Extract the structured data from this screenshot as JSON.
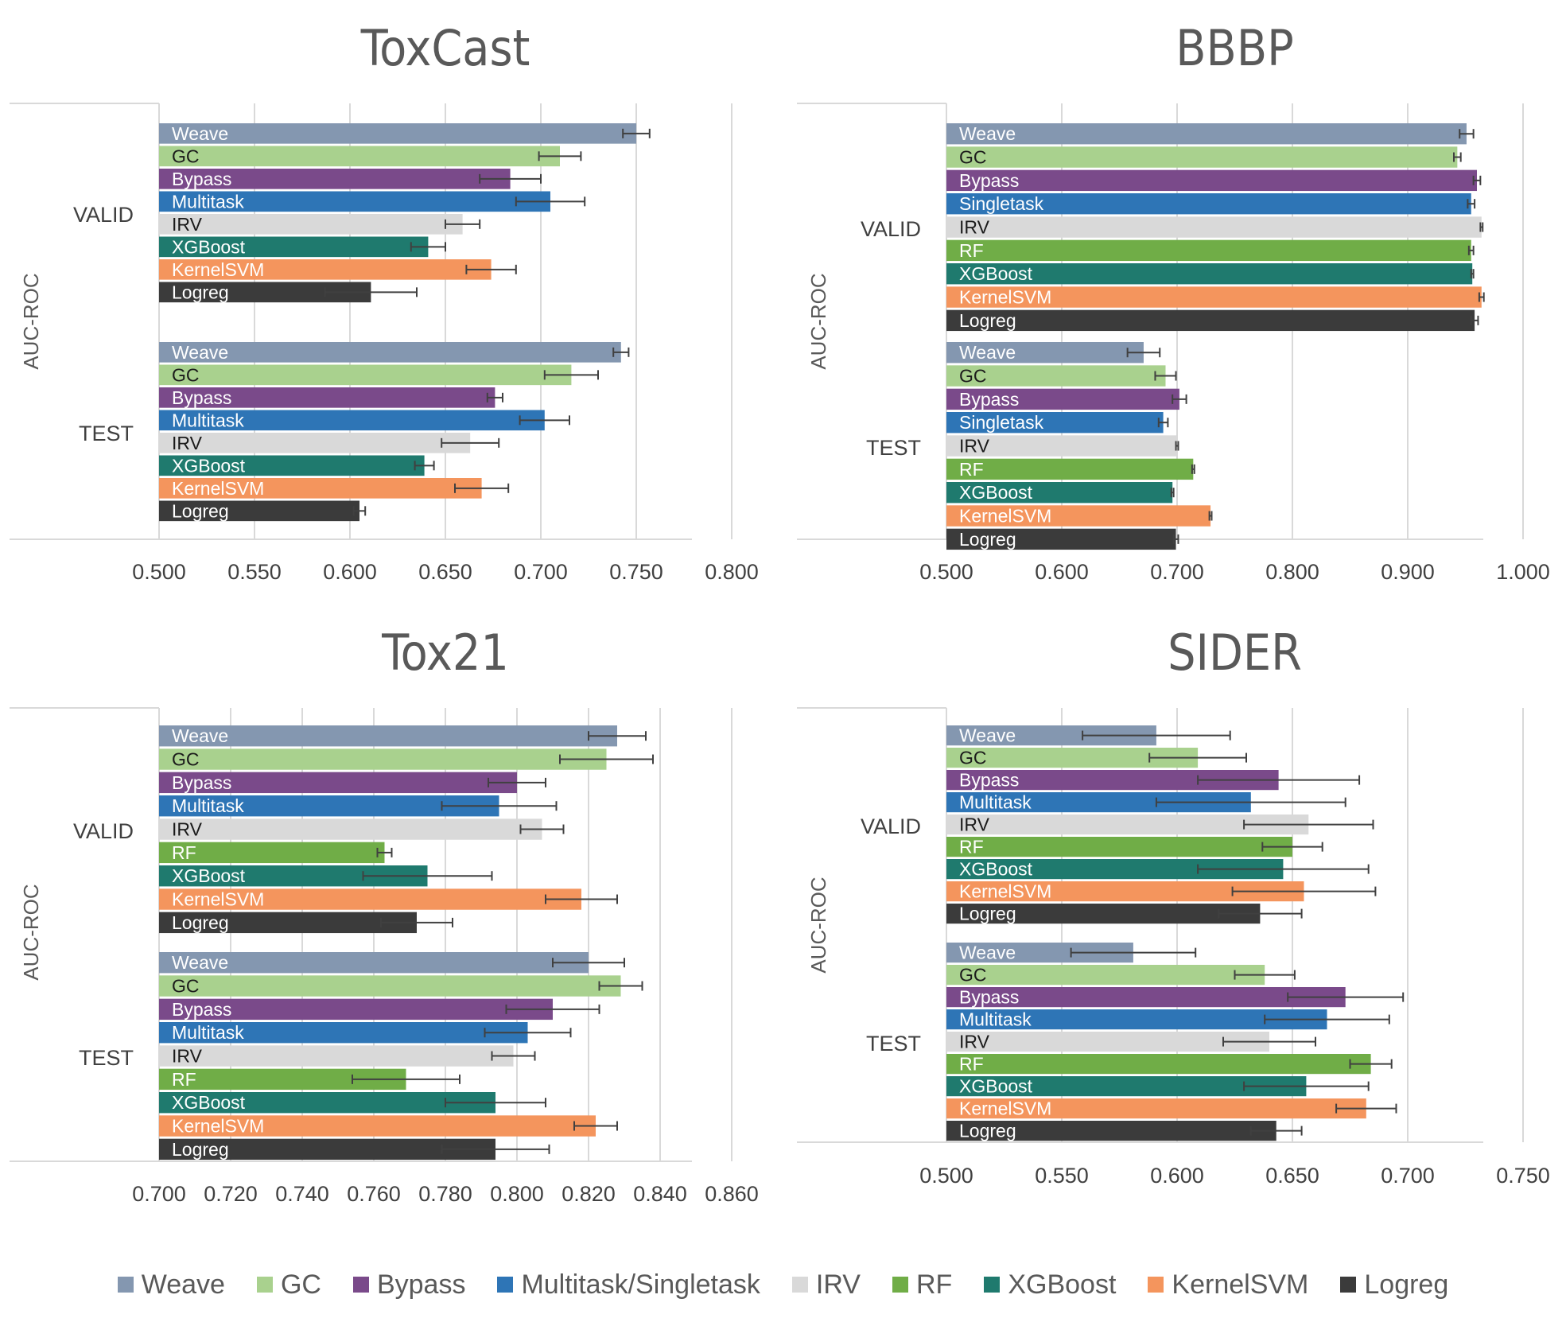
{
  "colors": {
    "Weave": "#8497b0",
    "GC": "#a9d18e",
    "Bypass": "#7a4a8a",
    "Multitask": "#2e75b6",
    "Singletask": "#2e75b6",
    "IRV": "#d9d9d9",
    "RF": "#70ad47",
    "XGBoost": "#1f7a6e",
    "KernelSVM": "#f4955d",
    "Logreg": "#3b3b3b"
  },
  "legend": [
    {
      "label": "Weave",
      "color": "#8497b0"
    },
    {
      "label": "GC",
      "color": "#a9d18e"
    },
    {
      "label": "Bypass",
      "color": "#7a4a8a"
    },
    {
      "label": "Multitask/Singletask",
      "color": "#2e75b6"
    },
    {
      "label": "IRV",
      "color": "#d9d9d9"
    },
    {
      "label": "RF",
      "color": "#70ad47"
    },
    {
      "label": "XGBoost",
      "color": "#1f7a6e"
    },
    {
      "label": "KernelSVM",
      "color": "#f4955d"
    },
    {
      "label": "Logreg",
      "color": "#3b3b3b"
    }
  ],
  "chart_data": [
    {
      "type": "bar",
      "orientation": "horizontal",
      "title": "ToxCast",
      "ylabel": "AUC-ROC",
      "xlim": [
        0.5,
        0.8
      ],
      "xticks": [
        "0.500",
        "0.550",
        "0.600",
        "0.650",
        "0.700",
        "0.750",
        "0.800"
      ],
      "groups": [
        {
          "name": "VALID",
          "bars": [
            {
              "label": "Weave",
              "value": 0.75,
              "err": 0.007
            },
            {
              "label": "GC",
              "value": 0.71,
              "err": 0.011
            },
            {
              "label": "Bypass",
              "value": 0.684,
              "err": 0.016
            },
            {
              "label": "Multitask",
              "value": 0.705,
              "err": 0.018
            },
            {
              "label": "IRV",
              "value": 0.659,
              "err": 0.009
            },
            {
              "label": "XGBoost",
              "value": 0.641,
              "err": 0.009
            },
            {
              "label": "KernelSVM",
              "value": 0.674,
              "err": 0.013
            },
            {
              "label": "Logreg",
              "value": 0.611,
              "err": 0.024
            }
          ]
        },
        {
          "name": "TEST",
          "bars": [
            {
              "label": "Weave",
              "value": 0.742,
              "err": 0.004
            },
            {
              "label": "GC",
              "value": 0.716,
              "err": 0.014
            },
            {
              "label": "Bypass",
              "value": 0.676,
              "err": 0.004
            },
            {
              "label": "Multitask",
              "value": 0.702,
              "err": 0.013
            },
            {
              "label": "IRV",
              "value": 0.663,
              "err": 0.015
            },
            {
              "label": "XGBoost",
              "value": 0.639,
              "err": 0.005
            },
            {
              "label": "KernelSVM",
              "value": 0.669,
              "err": 0.014
            },
            {
              "label": "Logreg",
              "value": 0.605,
              "err": 0.003
            }
          ]
        }
      ]
    },
    {
      "type": "bar",
      "orientation": "horizontal",
      "title": "BBBP",
      "ylabel": "AUC-ROC",
      "xlim": [
        0.5,
        1.0
      ],
      "xticks": [
        "0.500",
        "0.600",
        "0.700",
        "0.800",
        "0.900",
        "1.000"
      ],
      "groups": [
        {
          "name": "VALID",
          "bars": [
            {
              "label": "Weave",
              "value": 0.951,
              "err": 0.006
            },
            {
              "label": "GC",
              "value": 0.943,
              "err": 0.003
            },
            {
              "label": "Bypass",
              "value": 0.96,
              "err": 0.003
            },
            {
              "label": "Singletask",
              "value": 0.955,
              "err": 0.003
            },
            {
              "label": "IRV",
              "value": 0.964,
              "err": 0.001
            },
            {
              "label": "RF",
              "value": 0.955,
              "err": 0.002
            },
            {
              "label": "XGBoost",
              "value": 0.956,
              "err": 0.001
            },
            {
              "label": "KernelSVM",
              "value": 0.964,
              "err": 0.002
            },
            {
              "label": "Logreg",
              "value": 0.958,
              "err": 0.003
            }
          ]
        },
        {
          "name": "TEST",
          "bars": [
            {
              "label": "Weave",
              "value": 0.671,
              "err": 0.014
            },
            {
              "label": "GC",
              "value": 0.69,
              "err": 0.009
            },
            {
              "label": "Bypass",
              "value": 0.702,
              "err": 0.006
            },
            {
              "label": "Singletask",
              "value": 0.688,
              "err": 0.004
            },
            {
              "label": "IRV",
              "value": 0.7,
              "err": 0.001
            },
            {
              "label": "RF",
              "value": 0.714,
              "err": 0.001
            },
            {
              "label": "XGBoost",
              "value": 0.696,
              "err": 0.001
            },
            {
              "label": "KernelSVM",
              "value": 0.729,
              "err": 0.001
            },
            {
              "label": "Logreg",
              "value": 0.699,
              "err": 0.002
            }
          ]
        }
      ]
    },
    {
      "type": "bar",
      "orientation": "horizontal",
      "title": "Tox21",
      "ylabel": "AUC-ROC",
      "xlim": [
        0.7,
        0.86
      ],
      "xticks": [
        "0.700",
        "0.720",
        "0.740",
        "0.760",
        "0.780",
        "0.800",
        "0.820",
        "0.840",
        "0.860"
      ],
      "groups": [
        {
          "name": "VALID",
          "bars": [
            {
              "label": "Weave",
              "value": 0.828,
              "err": 0.008
            },
            {
              "label": "GC",
              "value": 0.825,
              "err": 0.013
            },
            {
              "label": "Bypass",
              "value": 0.8,
              "err": 0.008
            },
            {
              "label": "Multitask",
              "value": 0.795,
              "err": 0.016
            },
            {
              "label": "IRV",
              "value": 0.807,
              "err": 0.006
            },
            {
              "label": "RF",
              "value": 0.763,
              "err": 0.002
            },
            {
              "label": "XGBoost",
              "value": 0.775,
              "err": 0.018
            },
            {
              "label": "KernelSVM",
              "value": 0.818,
              "err": 0.01
            },
            {
              "label": "Logreg",
              "value": 0.772,
              "err": 0.01
            }
          ]
        },
        {
          "name": "TEST",
          "bars": [
            {
              "label": "Weave",
              "value": 0.82,
              "err": 0.01
            },
            {
              "label": "GC",
              "value": 0.829,
              "err": 0.006
            },
            {
              "label": "Bypass",
              "value": 0.81,
              "err": 0.013
            },
            {
              "label": "Multitask",
              "value": 0.803,
              "err": 0.012
            },
            {
              "label": "IRV",
              "value": 0.799,
              "err": 0.006
            },
            {
              "label": "RF",
              "value": 0.769,
              "err": 0.015
            },
            {
              "label": "XGBoost",
              "value": 0.794,
              "err": 0.014
            },
            {
              "label": "KernelSVM",
              "value": 0.822,
              "err": 0.006
            },
            {
              "label": "Logreg",
              "value": 0.794,
              "err": 0.015
            }
          ]
        }
      ]
    },
    {
      "type": "bar",
      "orientation": "horizontal",
      "title": "SIDER",
      "ylabel": "AUC-ROC",
      "xlim": [
        0.5,
        0.75
      ],
      "xticks": [
        "0.500",
        "0.550",
        "0.600",
        "0.650",
        "0.700",
        "0.750"
      ],
      "groups": [
        {
          "name": "VALID",
          "bars": [
            {
              "label": "Weave",
              "value": 0.591,
              "err": 0.032
            },
            {
              "label": "GC",
              "value": 0.609,
              "err": 0.021
            },
            {
              "label": "Bypass",
              "value": 0.644,
              "err": 0.035
            },
            {
              "label": "Multitask",
              "value": 0.632,
              "err": 0.041
            },
            {
              "label": "IRV",
              "value": 0.657,
              "err": 0.028
            },
            {
              "label": "RF",
              "value": 0.65,
              "err": 0.013
            },
            {
              "label": "XGBoost",
              "value": 0.646,
              "err": 0.037
            },
            {
              "label": "KernelSVM",
              "value": 0.655,
              "err": 0.031
            },
            {
              "label": "Logreg",
              "value": 0.636,
              "err": 0.018
            }
          ]
        },
        {
          "name": "TEST",
          "bars": [
            {
              "label": "Weave",
              "value": 0.581,
              "err": 0.027
            },
            {
              "label": "GC",
              "value": 0.638,
              "err": 0.013
            },
            {
              "label": "Bypass",
              "value": 0.673,
              "err": 0.025
            },
            {
              "label": "Multitask",
              "value": 0.665,
              "err": 0.027
            },
            {
              "label": "IRV",
              "value": 0.64,
              "err": 0.02
            },
            {
              "label": "RF",
              "value": 0.684,
              "err": 0.009
            },
            {
              "label": "XGBoost",
              "value": 0.656,
              "err": 0.027
            },
            {
              "label": "KernelSVM",
              "value": 0.682,
              "err": 0.013
            },
            {
              "label": "Logreg",
              "value": 0.643,
              "err": 0.011
            }
          ]
        }
      ]
    }
  ]
}
